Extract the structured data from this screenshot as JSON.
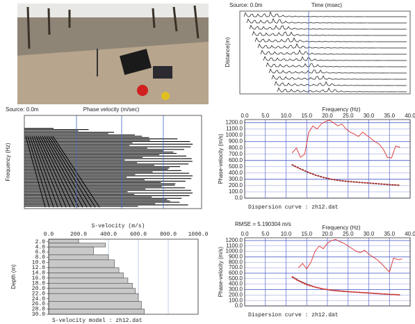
{
  "chart_data": [
    {
      "type": "seismogram",
      "source": "Source: 0.0m",
      "xlabel": "Time (msec)",
      "ylabel": "Distance(m)"
    },
    {
      "type": "dispersion-image",
      "source": "Source: 0.0m",
      "xlabel": "Phase velocity (m/sec)",
      "ylabel": "Frequency (Hz)"
    },
    {
      "type": "line",
      "xlabel": "Frequency (Hz)",
      "ylabel": "Phase-velocity (m/s)",
      "caption": "Dispersion curve : zh12.dat",
      "xlim": [
        0,
        40
      ],
      "xticks": [
        {
          "value": 0,
          "label": "0.0"
        },
        {
          "value": 5,
          "label": "5.0"
        },
        {
          "value": 10,
          "label": "10.0"
        },
        {
          "value": 15,
          "label": "15.0"
        },
        {
          "value": 20,
          "label": "20.0"
        },
        {
          "value": 25,
          "label": "25.0"
        },
        {
          "value": 30,
          "label": "30.0"
        },
        {
          "value": 35,
          "label": "35.0"
        },
        {
          "value": 40,
          "label": "40.0"
        }
      ],
      "ylim": [
        0,
        1250
      ],
      "yticks": [
        {
          "value": 0,
          "label": "0.0"
        },
        {
          "value": 100,
          "label": "100.0"
        },
        {
          "value": 200,
          "label": "200.0"
        },
        {
          "value": 300,
          "label": "300.0"
        },
        {
          "value": 400,
          "label": "400.0"
        },
        {
          "value": 500,
          "label": "500.0"
        },
        {
          "value": 600,
          "label": "600.0"
        },
        {
          "value": 700,
          "label": "700.0"
        },
        {
          "value": 800,
          "label": "800.0"
        },
        {
          "value": 900,
          "label": "900.0"
        },
        {
          "value": 1000,
          "label": "1000.0"
        },
        {
          "value": 1100,
          "label": "1100.0"
        },
        {
          "value": 1200,
          "label": "1200.0"
        }
      ],
      "series": [
        {
          "color": "#e04040",
          "linestyle": "solid",
          "x": [
            11.5,
            12.5,
            13.5,
            14.5,
            15.5,
            16.5,
            17.5,
            18.5,
            19.5,
            20.5,
            21.5,
            22.5,
            23.5,
            24.5,
            25.5,
            26.5,
            27.5,
            28.5,
            29.5,
            30.5,
            31.5,
            32.5,
            33.5,
            34.5,
            35.5,
            36.5,
            37.5
          ],
          "values": [
            720,
            800,
            650,
            700,
            1050,
            1150,
            1100,
            1180,
            1220,
            1240,
            1200,
            1150,
            1180,
            1100,
            1050,
            1020,
            980,
            1050,
            1000,
            950,
            900,
            860,
            780,
            650,
            640,
            830,
            810
          ]
        },
        {
          "color": "#a03030",
          "linestyle": "dotted",
          "x": [
            11.5,
            13,
            15,
            17,
            19,
            21,
            23,
            25,
            27,
            29,
            31,
            33,
            35,
            37.5
          ],
          "values": [
            530,
            480,
            420,
            370,
            330,
            300,
            280,
            265,
            255,
            245,
            235,
            225,
            215,
            205
          ]
        }
      ]
    },
    {
      "type": "step",
      "title": "S-velocity (m/s)",
      "ylabel": "Depth (m)",
      "caption": "S-velocity model : zh12.dat",
      "color": "#c8c8c8",
      "xlim": [
        0,
        1000
      ],
      "xticks": [
        {
          "value": 0,
          "label": "0.0"
        },
        {
          "value": 200,
          "label": "200.0"
        },
        {
          "value": 400,
          "label": "400.0"
        },
        {
          "value": 600,
          "label": "600.0"
        },
        {
          "value": 800,
          "label": "800.0"
        },
        {
          "value": 1000,
          "label": "1000.0"
        }
      ],
      "ylim": [
        1,
        30
      ],
      "yticks": [
        {
          "value": 2,
          "label": "2.0"
        },
        {
          "value": 4,
          "label": "4.0"
        },
        {
          "value": 6,
          "label": "6.0"
        },
        {
          "value": 8,
          "label": "8.0"
        },
        {
          "value": 10,
          "label": "10.0"
        },
        {
          "value": 12,
          "label": "12.0"
        },
        {
          "value": 14,
          "label": "14.0"
        },
        {
          "value": 16,
          "label": "16.0"
        },
        {
          "value": 18,
          "label": "18.0"
        },
        {
          "value": 20,
          "label": "20.0"
        },
        {
          "value": 22,
          "label": "22.0"
        },
        {
          "value": 24,
          "label": "24.0"
        },
        {
          "value": 26,
          "label": "26.0"
        },
        {
          "value": 28,
          "label": "28.0"
        },
        {
          "value": 30,
          "label": "30.0"
        }
      ],
      "depths": [
        1,
        2.5,
        4,
        7,
        9,
        12,
        14,
        16,
        18,
        20,
        22,
        25,
        28,
        30
      ],
      "values": [
        200,
        380,
        300,
        400,
        440,
        470,
        500,
        530,
        560,
        580,
        600,
        620,
        640
      ]
    },
    {
      "type": "line",
      "annotation": "RMSE = 5.190304 m/s",
      "xlabel": "Frequency (Hz)",
      "ylabel": "Phase-velocity (m/s)",
      "caption": "Dispersion curve : zh12.dat",
      "xlim": [
        0,
        40
      ],
      "xticks": [
        {
          "value": 0,
          "label": "0.0"
        },
        {
          "value": 5,
          "label": "5.0"
        },
        {
          "value": 10,
          "label": "10.0"
        },
        {
          "value": 15,
          "label": "15.0"
        },
        {
          "value": 20,
          "label": "20.0"
        },
        {
          "value": 25,
          "label": "25.0"
        },
        {
          "value": 30,
          "label": "30.0"
        },
        {
          "value": 35,
          "label": "35.0"
        },
        {
          "value": 40,
          "label": "40.0"
        }
      ],
      "ylim": [
        0,
        1250
      ],
      "yticks": [
        {
          "value": 0,
          "label": "0.0"
        },
        {
          "value": 100,
          "label": "100.0"
        },
        {
          "value": 200,
          "label": "200.0"
        },
        {
          "value": 300,
          "label": "300.0"
        },
        {
          "value": 400,
          "label": "400.0"
        },
        {
          "value": 500,
          "label": "500.0"
        },
        {
          "value": 600,
          "label": "600.0"
        },
        {
          "value": 700,
          "label": "700.0"
        },
        {
          "value": 800,
          "label": "800.0"
        },
        {
          "value": 900,
          "label": "900.0"
        },
        {
          "value": 1000,
          "label": "1000.0"
        },
        {
          "value": 1100,
          "label": "1100.0"
        },
        {
          "value": 1200,
          "label": "1200.0"
        }
      ],
      "series": [
        {
          "color": "#e04040",
          "linestyle": "solid",
          "x": [
            13,
            14,
            15,
            16,
            17,
            18,
            19,
            20,
            21,
            22,
            23,
            24,
            25,
            26,
            27,
            28,
            29,
            30,
            31,
            32,
            33,
            34,
            35,
            36,
            37,
            38
          ],
          "values": [
            700,
            780,
            680,
            800,
            1000,
            1100,
            1050,
            1150,
            1200,
            1220,
            1180,
            1150,
            1100,
            1050,
            1000,
            980,
            1020,
            950,
            900,
            850,
            780,
            700,
            620,
            880,
            850,
            860
          ]
        },
        {
          "color": "#111111",
          "linestyle": "solid",
          "x": [
            11.5,
            13,
            15,
            17,
            19,
            21,
            23,
            25,
            27,
            29,
            31,
            33,
            35,
            37.5
          ],
          "values": [
            540,
            470,
            400,
            350,
            310,
            285,
            270,
            260,
            250,
            240,
            230,
            220,
            210,
            200
          ]
        },
        {
          "color": "#e04040",
          "linestyle": "dotted",
          "x": [
            11.5,
            13,
            15,
            17,
            19,
            21,
            23,
            25,
            27,
            29,
            31,
            33,
            35,
            37.5
          ],
          "values": [
            530,
            460,
            390,
            345,
            310,
            290,
            275,
            262,
            252,
            242,
            232,
            222,
            212,
            205
          ]
        }
      ]
    }
  ]
}
